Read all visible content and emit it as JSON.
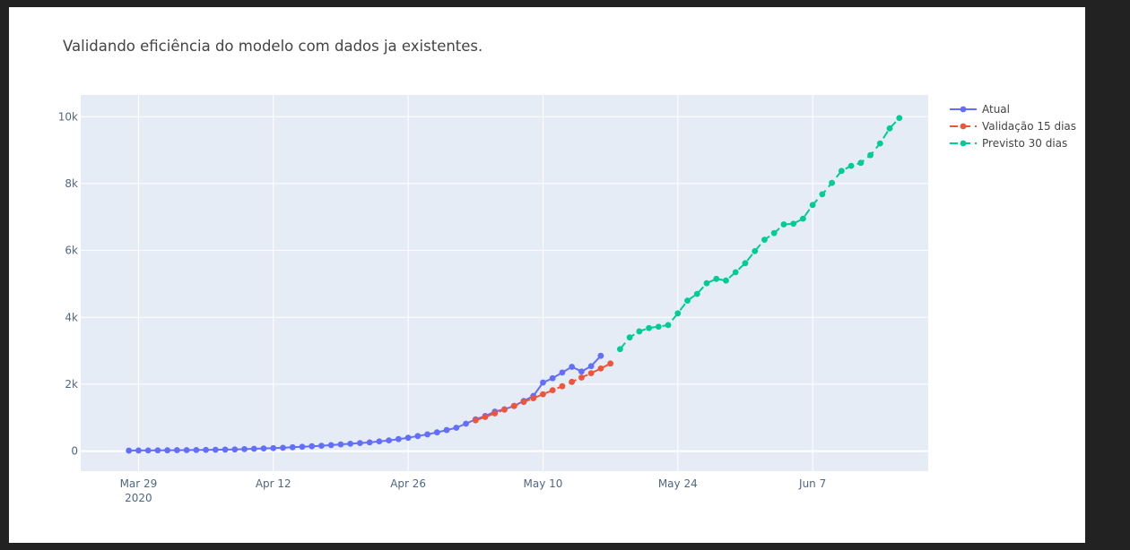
{
  "chart_data": {
    "type": "line",
    "title": "Validando eficiência do modelo com dados ja existentes.",
    "xlabel": "",
    "ylabel": "",
    "x_ticks": [
      {
        "date": "2020-03-29",
        "label": "Mar 29",
        "sublabel": "2020"
      },
      {
        "date": "2020-04-12",
        "label": "Apr 12",
        "sublabel": ""
      },
      {
        "date": "2020-04-26",
        "label": "Apr 26",
        "sublabel": ""
      },
      {
        "date": "2020-05-10",
        "label": "May 10",
        "sublabel": ""
      },
      {
        "date": "2020-05-24",
        "label": "May 24",
        "sublabel": ""
      },
      {
        "date": "2020-06-07",
        "label": "Jun 7",
        "sublabel": ""
      }
    ],
    "y_ticks": [
      {
        "value": 0,
        "label": "0"
      },
      {
        "value": 2000,
        "label": "2k"
      },
      {
        "value": 4000,
        "label": "4k"
      },
      {
        "value": 6000,
        "label": "6k"
      },
      {
        "value": 8000,
        "label": "8k"
      },
      {
        "value": 10000,
        "label": "10k"
      }
    ],
    "xlim": [
      "2020-03-23",
      "2020-06-19"
    ],
    "ylim": [
      -600,
      10650
    ],
    "grid": true,
    "legend_position": "top-right",
    "series": [
      {
        "name": "Atual",
        "color": "#636efa",
        "dash": "solid",
        "start_date": "2020-03-28",
        "values": [
          15,
          18,
          20,
          22,
          25,
          28,
          30,
          33,
          37,
          40,
          45,
          50,
          60,
          70,
          80,
          90,
          100,
          115,
          130,
          145,
          160,
          180,
          200,
          220,
          240,
          260,
          290,
          320,
          360,
          400,
          450,
          500,
          560,
          630,
          700,
          820,
          950,
          1050,
          1180,
          1250,
          1350,
          1500,
          1650,
          2050,
          2180,
          2350,
          2520,
          2380,
          2540,
          2850
        ]
      },
      {
        "name": "Validação 15 dias",
        "color": "#ef553b",
        "dash": "dash",
        "start_date": "2020-05-03",
        "values": [
          920,
          1020,
          1130,
          1240,
          1350,
          1470,
          1580,
          1700,
          1820,
          1940,
          2070,
          2200,
          2330,
          2470,
          2620
        ]
      },
      {
        "name": "Previsto 30 dias",
        "color": "#00cc96",
        "dash": "dash",
        "start_date": "2020-05-18",
        "values": [
          3050,
          3400,
          3580,
          3680,
          3720,
          3770,
          4120,
          4500,
          4700,
          5020,
          5150,
          5100,
          5350,
          5620,
          5980,
          6320,
          6520,
          6780,
          6800,
          6950,
          7360,
          7680,
          8020,
          8380,
          8530,
          8620,
          8850,
          9200,
          9650,
          9960
        ]
      }
    ]
  }
}
